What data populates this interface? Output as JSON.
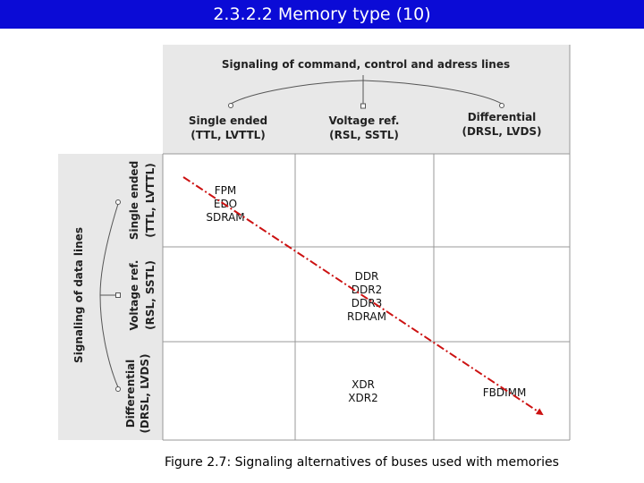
{
  "title": "2.3.2.2 Memory type (10)",
  "top_header": "Signaling of command, control and adress lines",
  "columns": [
    {
      "line1": "Single ended",
      "line2": "(TTL, LVTTL)"
    },
    {
      "line1": "Voltage ref.",
      "line2": "(RSL, SSTL)"
    },
    {
      "line1": "Differential",
      "line2": "(DRSL, LVDS)"
    }
  ],
  "side_header": "Signaling of data lines",
  "rows": [
    {
      "line1": "Single ended",
      "line2": "(TTL, LVTTL)"
    },
    {
      "line1": "Voltage ref.",
      "line2": "(RSL, SSTL)"
    },
    {
      "line1": "Differential",
      "line2": "(DRSL, LVDS)"
    }
  ],
  "cells": {
    "r0c0": [
      "FPM",
      "EDO",
      "SDRAM"
    ],
    "r1c1": [
      "DDR",
      "DDR2",
      "DDR3",
      "RDRAM"
    ],
    "r2c1": [
      "XDR",
      "XDR2"
    ],
    "r2c2": [
      "FBDIMM"
    ]
  },
  "caption": "Figure 2.7: Signaling alternatives of buses used with memories",
  "colors": {
    "title_bg": "#0b0bd6",
    "panel_bg": "#e8e8e8",
    "arrow": "#cc1111"
  }
}
